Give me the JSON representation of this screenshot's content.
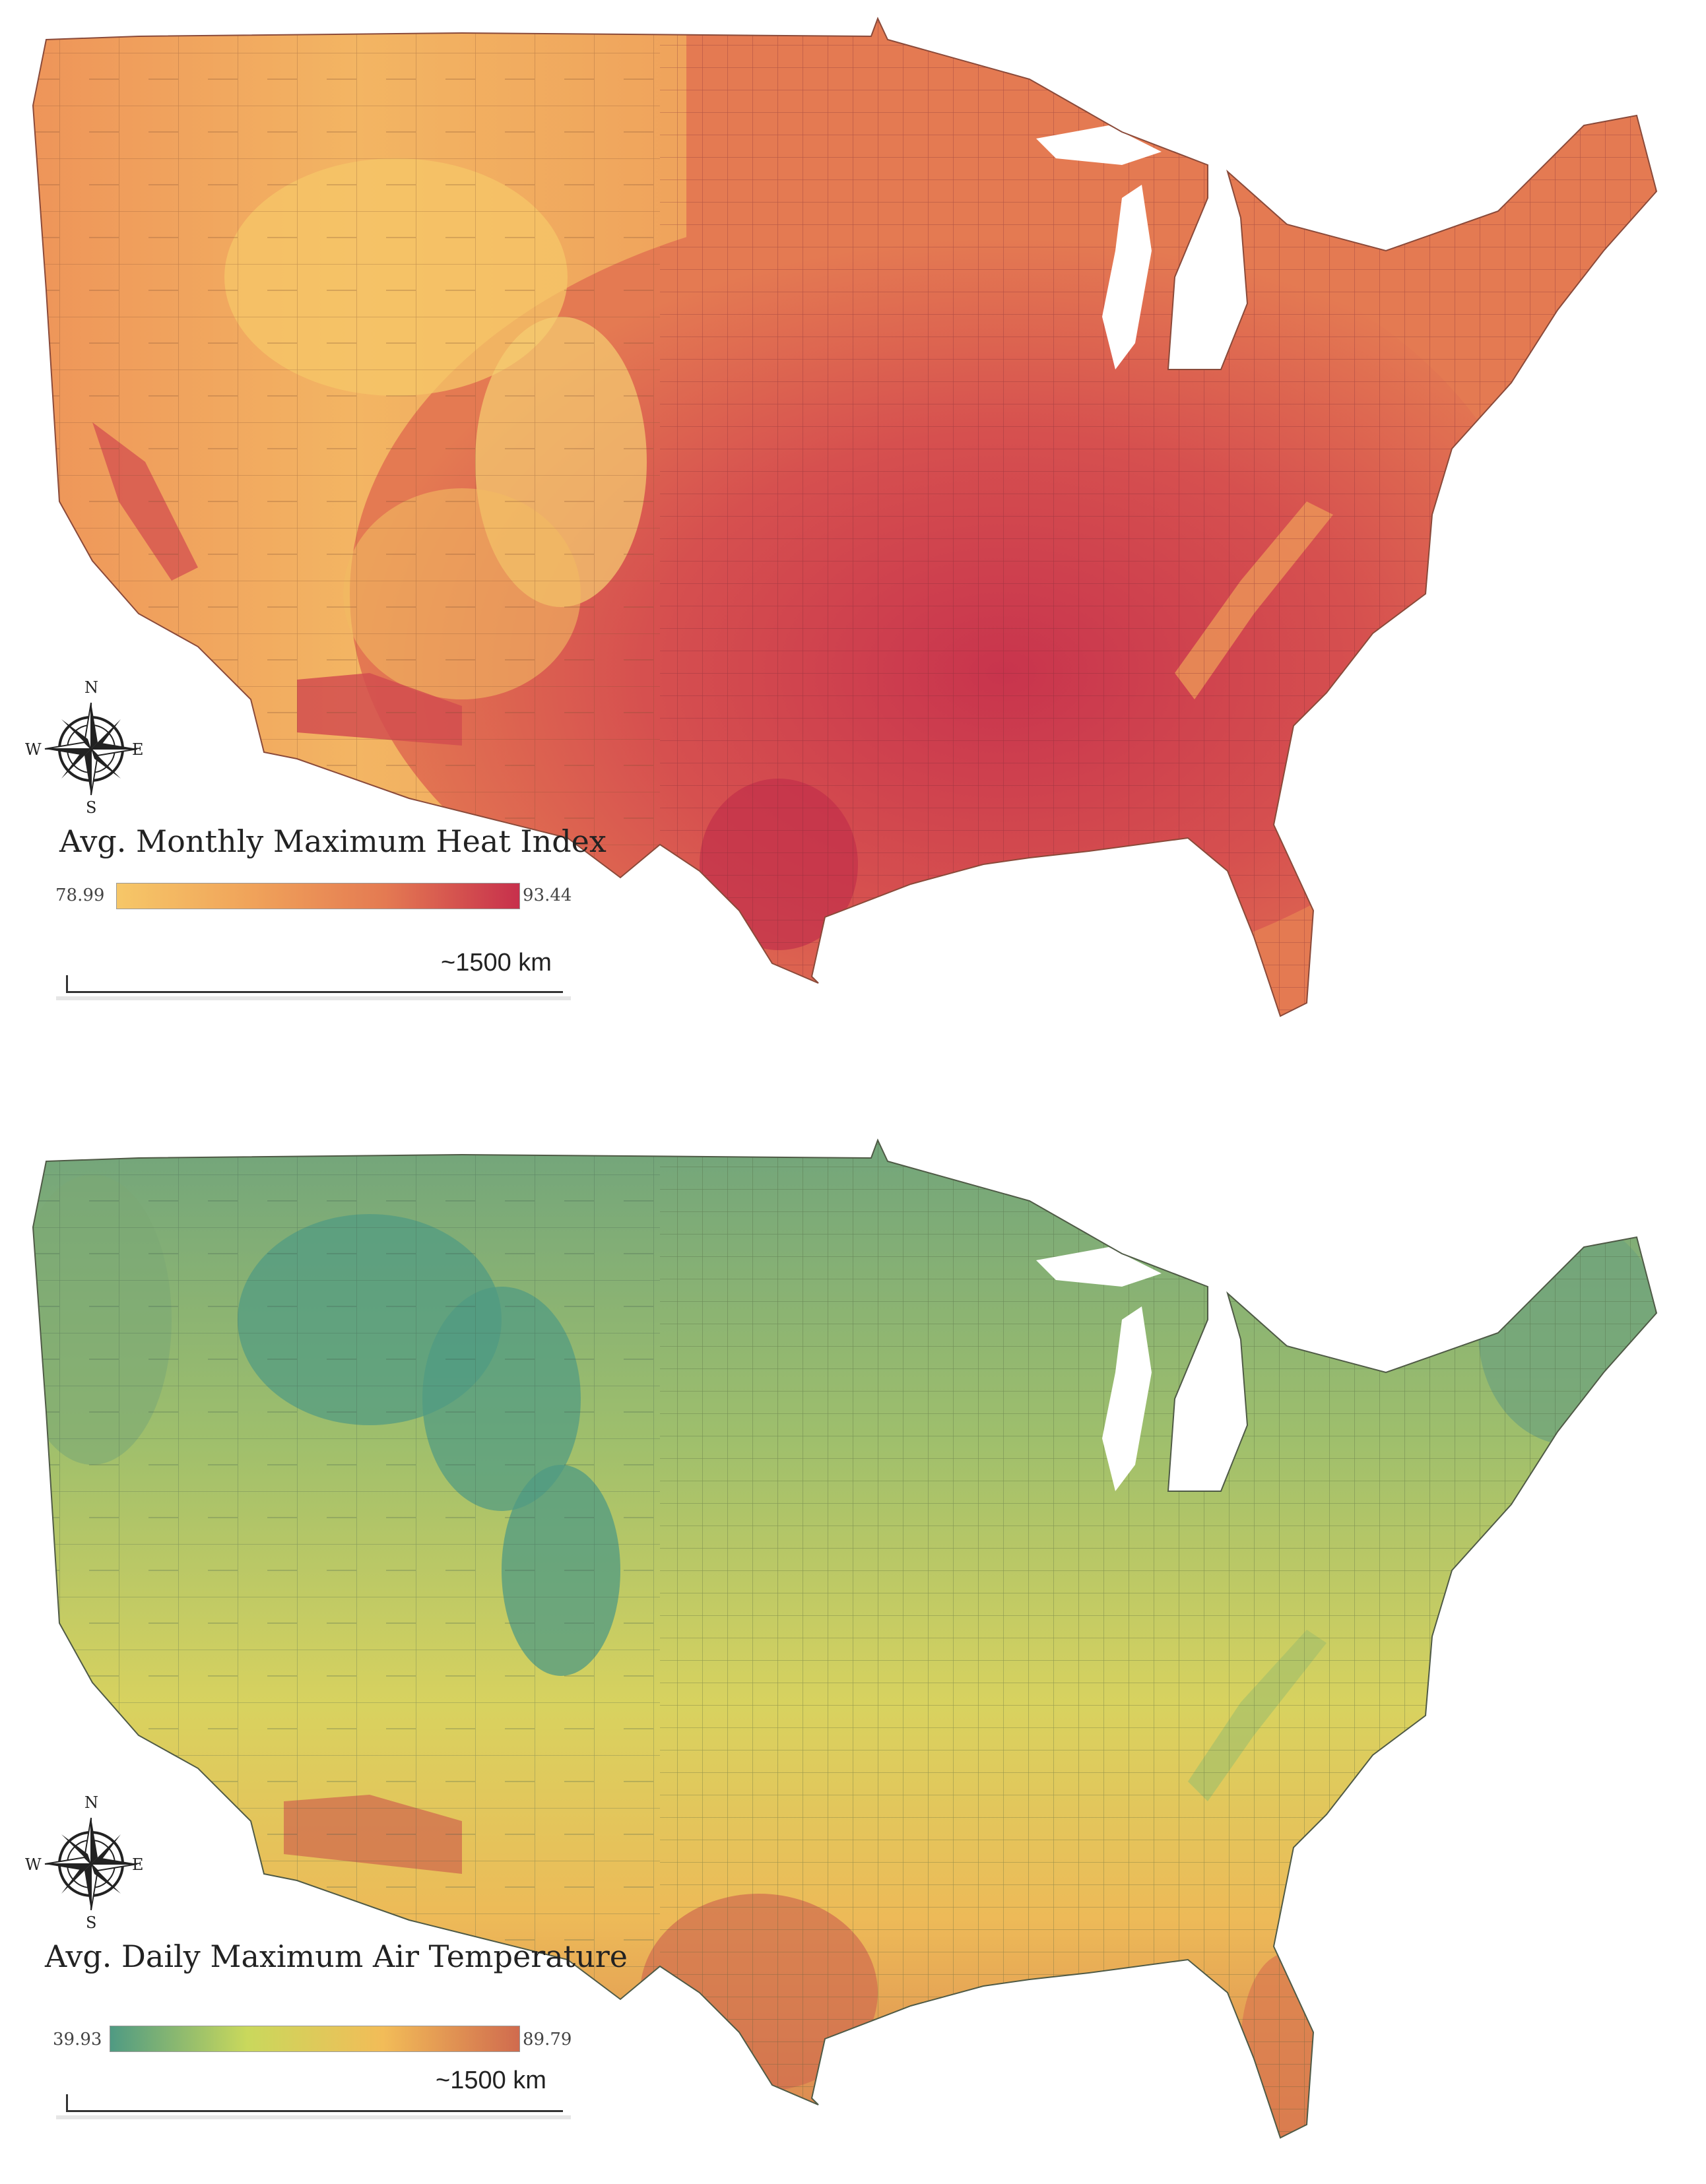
{
  "maps": [
    {
      "legend_title": "Avg. Monthly Maximum Heat Index",
      "legend_min": "78.99",
      "legend_max": "93.44",
      "scale_label": "~1500 km",
      "colors": [
        "#f6c768",
        "#f0a35a",
        "#e47a52",
        "#c7304c"
      ]
    },
    {
      "legend_title": "Avg. Daily Maximum Air Temperature",
      "legend_min": "39.93",
      "legend_max": "89.79",
      "scale_label": "~1500 km",
      "colors": [
        "#4f9a83",
        "#c9d85c",
        "#f2bc58",
        "#d06b4e"
      ]
    }
  ],
  "compass": {
    "n": "N",
    "s": "S",
    "e": "E",
    "w": "W",
    "icon": "compass-rose-icon"
  }
}
